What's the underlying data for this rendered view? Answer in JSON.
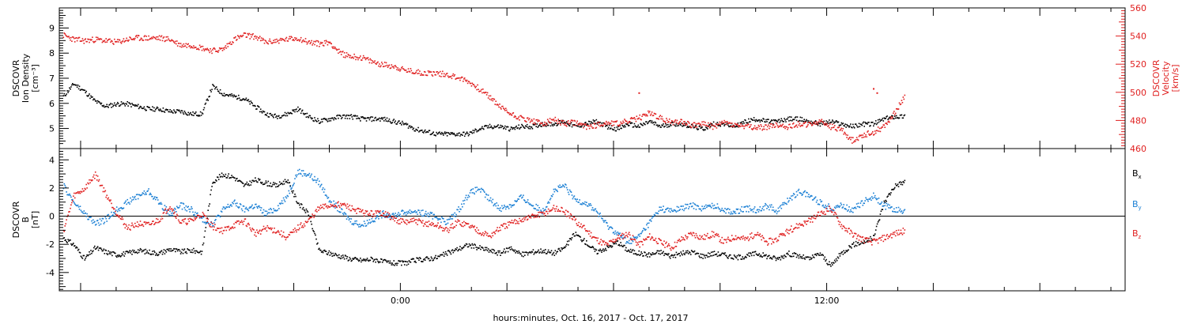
{
  "colors": {
    "density": "#000000",
    "velocity": "#e02020",
    "bx": "#000000",
    "by": "#1a7fd4",
    "bz": "#e02020",
    "axis_right": "#e02020"
  },
  "xaxis": {
    "title": "hours:minutes, Oct. 16, 2017 - Oct. 17, 2017",
    "range_hours": [
      -9.6,
      20.4
    ],
    "major_ticks_hours": [
      0,
      12
    ],
    "major_tick_labels": [
      "0:00",
      "12:00"
    ]
  },
  "chart_data": [
    {
      "type": "scatter",
      "ylabel_left": [
        "DSCOVR",
        "Ion Density",
        "[cm⁻³]"
      ],
      "ylabel_right": [
        "DSCOVR",
        "Velocity",
        "[km/s]"
      ],
      "ylim_left": [
        4.2,
        9.8
      ],
      "ylim_right": [
        460,
        560
      ],
      "yticks_left": [
        5,
        6,
        7,
        8,
        9
      ],
      "yticks_right": [
        460,
        480,
        500,
        520,
        540,
        560
      ],
      "series": [
        {
          "name": "density",
          "axis": "left",
          "x": [
            -9.5,
            -9.2,
            -8.9,
            -8.6,
            -8.3,
            -8.0,
            -7.7,
            -7.4,
            -7.1,
            -6.8,
            -6.5,
            -6.2,
            -5.9,
            -5.6,
            -5.3,
            -5.0,
            -4.7,
            -4.4,
            -4.1,
            -3.8,
            -3.5,
            -3.2,
            -2.9,
            -2.6,
            -2.3,
            -2.0,
            -1.7,
            -1.4,
            -1.1,
            -0.8,
            -0.5,
            -0.2,
            0.1,
            0.4,
            0.7,
            1.0,
            1.3,
            1.6,
            1.9,
            2.2,
            2.5,
            2.8,
            3.1,
            3.4,
            3.7,
            4.0,
            4.3,
            4.6,
            4.9,
            5.2,
            5.5,
            5.8,
            6.1,
            6.4,
            6.7,
            7.0,
            7.3,
            7.6,
            7.9,
            8.2,
            8.5,
            8.8,
            9.1,
            9.4,
            9.7,
            10.0,
            10.3,
            10.6,
            10.9,
            11.2,
            11.5,
            11.8,
            12.1,
            12.4,
            12.7,
            13.0,
            13.3,
            13.6,
            13.9,
            14.2
          ],
          "y": [
            6.3,
            6.8,
            6.5,
            6.1,
            5.9,
            6.0,
            6.0,
            5.9,
            5.8,
            5.8,
            5.7,
            5.7,
            5.6,
            5.6,
            6.7,
            6.4,
            6.3,
            6.2,
            5.9,
            5.6,
            5.5,
            5.6,
            5.8,
            5.5,
            5.3,
            5.4,
            5.5,
            5.5,
            5.4,
            5.4,
            5.4,
            5.3,
            5.2,
            5.0,
            4.9,
            4.8,
            4.8,
            4.8,
            4.8,
            5.0,
            5.1,
            5.1,
            5.0,
            5.1,
            5.1,
            5.2,
            5.2,
            5.3,
            5.1,
            5.2,
            5.3,
            5.1,
            5.0,
            5.2,
            5.1,
            5.3,
            5.1,
            5.2,
            5.2,
            5.1,
            5.0,
            5.2,
            5.2,
            5.1,
            5.3,
            5.4,
            5.3,
            5.3,
            5.4,
            5.4,
            5.3,
            5.2,
            5.3,
            5.2,
            5.1,
            5.2,
            5.2,
            5.4,
            5.5,
            5.5
          ]
        },
        {
          "name": "velocity",
          "axis": "right",
          "x": [
            -9.5,
            -9.2,
            -8.9,
            -8.6,
            -8.3,
            -8.0,
            -7.7,
            -7.4,
            -7.1,
            -6.8,
            -6.5,
            -6.2,
            -5.9,
            -5.6,
            -5.3,
            -5.0,
            -4.7,
            -4.4,
            -4.1,
            -3.8,
            -3.5,
            -3.2,
            -2.9,
            -2.6,
            -2.3,
            -2.0,
            -1.7,
            -1.4,
            -1.1,
            -0.8,
            -0.5,
            -0.2,
            0.1,
            0.4,
            0.7,
            1.0,
            1.3,
            1.6,
            1.9,
            2.2,
            2.5,
            2.8,
            3.1,
            3.4,
            3.7,
            4.0,
            4.3,
            4.6,
            4.9,
            5.2,
            5.5,
            5.8,
            6.1,
            6.4,
            6.7,
            7.0,
            7.3,
            7.6,
            7.9,
            8.2,
            8.5,
            8.8,
            9.1,
            9.4,
            9.7,
            10.0,
            10.3,
            10.6,
            10.9,
            11.2,
            11.5,
            11.8,
            12.1,
            12.4,
            12.7,
            13.0,
            13.3,
            13.6,
            13.9,
            14.2
          ],
          "y": [
            541,
            538,
            537,
            538,
            537,
            536,
            538,
            539,
            539,
            539,
            538,
            534,
            534,
            532,
            530,
            531,
            538,
            541,
            540,
            536,
            537,
            538,
            539,
            536,
            535,
            536,
            528,
            526,
            525,
            522,
            520,
            519,
            516,
            515,
            514,
            514,
            513,
            511,
            508,
            503,
            497,
            490,
            485,
            482,
            480,
            478,
            481,
            478,
            479,
            476,
            477,
            479,
            478,
            480,
            482,
            486,
            482,
            479,
            480,
            477,
            478,
            476,
            479,
            477,
            476,
            475,
            476,
            477,
            476,
            478,
            477,
            480,
            476,
            474,
            466,
            470,
            472,
            476,
            486,
            498
          ]
        },
        {
          "name": "velocity-spike",
          "axis": "right",
          "x": [
            6.7,
            13.3,
            13.4
          ],
          "y": [
            500,
            503,
            500
          ]
        }
      ]
    },
    {
      "type": "scatter",
      "ylabel_left": [
        "DSCOVR",
        "B",
        "[nT]"
      ],
      "ylim": [
        -5.3,
        4.8
      ],
      "yticks": [
        -4,
        -2,
        0,
        2,
        4
      ],
      "zero_line": 0,
      "legend": [
        "Bx",
        "By",
        "Bz"
      ],
      "series": [
        {
          "name": "Bx",
          "x": [
            -9.5,
            -9.2,
            -8.9,
            -8.6,
            -8.3,
            -8.0,
            -7.7,
            -7.4,
            -7.1,
            -6.8,
            -6.5,
            -6.2,
            -5.9,
            -5.6,
            -5.3,
            -5.0,
            -4.7,
            -4.4,
            -4.1,
            -3.8,
            -3.5,
            -3.2,
            -2.9,
            -2.6,
            -2.3,
            -2.0,
            -1.7,
            -1.4,
            -1.1,
            -0.8,
            -0.5,
            -0.2,
            0.1,
            0.4,
            0.7,
            1.0,
            1.3,
            1.6,
            1.9,
            2.2,
            2.5,
            2.8,
            3.1,
            3.4,
            3.7,
            4.0,
            4.3,
            4.6,
            4.9,
            5.2,
            5.5,
            5.8,
            6.1,
            6.4,
            6.7,
            7.0,
            7.3,
            7.6,
            7.9,
            8.2,
            8.5,
            8.8,
            9.1,
            9.4,
            9.7,
            10.0,
            10.3,
            10.6,
            10.9,
            11.2,
            11.5,
            11.8,
            12.1,
            12.4,
            12.7,
            13.0,
            13.3,
            13.6,
            13.9,
            14.2
          ],
          "y": [
            -1.5,
            -2.0,
            -3.0,
            -2.2,
            -2.5,
            -2.7,
            -2.6,
            -2.4,
            -2.5,
            -2.6,
            -2.3,
            -2.5,
            -2.4,
            -2.5,
            2.5,
            3.0,
            2.8,
            2.2,
            2.6,
            2.4,
            2.2,
            2.6,
            1.0,
            0.2,
            -2.4,
            -2.6,
            -2.8,
            -3.0,
            -3.1,
            -3.0,
            -3.2,
            -3.3,
            -3.3,
            -3.1,
            -3.0,
            -2.9,
            -2.6,
            -2.3,
            -2.0,
            -2.2,
            -2.4,
            -2.6,
            -2.2,
            -2.7,
            -2.5,
            -2.4,
            -2.6,
            -2.2,
            -1.2,
            -1.8,
            -2.5,
            -2.2,
            -1.8,
            -2.4,
            -2.6,
            -2.7,
            -2.5,
            -2.8,
            -2.6,
            -2.5,
            -2.8,
            -2.6,
            -2.7,
            -2.9,
            -2.8,
            -2.6,
            -2.8,
            -3.0,
            -2.6,
            -2.8,
            -3.0,
            -2.6,
            -3.5,
            -2.6,
            -2.0,
            -1.8,
            -1.5,
            1.0,
            2.2,
            2.5
          ]
        },
        {
          "name": "By",
          "x": [
            -9.5,
            -9.2,
            -8.9,
            -8.6,
            -8.3,
            -8.0,
            -7.7,
            -7.4,
            -7.1,
            -6.8,
            -6.5,
            -6.2,
            -5.9,
            -5.6,
            -5.3,
            -5.0,
            -4.7,
            -4.4,
            -4.1,
            -3.8,
            -3.5,
            -3.2,
            -2.9,
            -2.6,
            -2.3,
            -2.0,
            -1.7,
            -1.4,
            -1.1,
            -0.8,
            -0.5,
            -0.2,
            0.1,
            0.4,
            0.7,
            1.0,
            1.3,
            1.6,
            1.9,
            2.2,
            2.5,
            2.8,
            3.1,
            3.4,
            3.7,
            4.0,
            4.3,
            4.6,
            4.9,
            5.2,
            5.5,
            5.8,
            6.1,
            6.4,
            6.7,
            7.0,
            7.3,
            7.6,
            7.9,
            8.2,
            8.5,
            8.8,
            9.1,
            9.4,
            9.7,
            10.0,
            10.3,
            10.6,
            10.9,
            11.2,
            11.5,
            11.8,
            12.1,
            12.4,
            12.7,
            13.0,
            13.3,
            13.6,
            13.9,
            14.2
          ],
          "y": [
            2.2,
            1.0,
            0.2,
            -0.5,
            -0.2,
            0.5,
            1.0,
            1.5,
            1.8,
            1.0,
            0.2,
            0.8,
            0.5,
            -0.2,
            -0.5,
            0.5,
            1.0,
            0.5,
            0.8,
            0.2,
            0.6,
            1.5,
            3.2,
            3.0,
            2.4,
            1.2,
            0.4,
            -0.3,
            -0.6,
            -0.2,
            0.2,
            0.1,
            0.3,
            0.4,
            0.2,
            0.0,
            -0.4,
            0.4,
            1.6,
            2.0,
            1.2,
            0.6,
            0.8,
            1.4,
            0.8,
            0.4,
            1.8,
            2.2,
            1.2,
            1.0,
            0.4,
            -0.6,
            -1.2,
            -1.8,
            -1.4,
            -0.4,
            0.6,
            0.4,
            0.6,
            0.8,
            0.6,
            0.8,
            0.5,
            0.3,
            0.6,
            0.5,
            0.8,
            0.4,
            1.2,
            1.8,
            1.5,
            1.0,
            0.6,
            0.8,
            0.5,
            1.0,
            1.5,
            0.8,
            0.5,
            0.4
          ]
        },
        {
          "name": "Bz",
          "x": [
            -9.5,
            -9.2,
            -8.9,
            -8.6,
            -8.3,
            -8.0,
            -7.7,
            -7.4,
            -7.1,
            -6.8,
            -6.5,
            -6.2,
            -5.9,
            -5.6,
            -5.3,
            -5.0,
            -4.7,
            -4.4,
            -4.1,
            -3.8,
            -3.5,
            -3.2,
            -2.9,
            -2.6,
            -2.3,
            -2.0,
            -1.7,
            -1.4,
            -1.1,
            -0.8,
            -0.5,
            -0.2,
            0.1,
            0.4,
            0.7,
            1.0,
            1.3,
            1.6,
            1.9,
            2.2,
            2.5,
            2.8,
            3.1,
            3.4,
            3.7,
            4.0,
            4.3,
            4.6,
            4.9,
            5.2,
            5.5,
            5.8,
            6.1,
            6.4,
            6.7,
            7.0,
            7.3,
            7.6,
            7.9,
            8.2,
            8.5,
            8.8,
            9.1,
            9.4,
            9.7,
            10.0,
            10.3,
            10.6,
            10.9,
            11.2,
            11.5,
            11.8,
            12.1,
            12.4,
            12.7,
            13.0,
            13.3,
            13.6,
            13.9,
            14.2
          ],
          "y": [
            -1.0,
            1.5,
            2.0,
            3.0,
            1.6,
            0.3,
            -0.8,
            -0.5,
            -0.6,
            -0.2,
            0.8,
            -0.4,
            -0.3,
            0.2,
            -0.7,
            -1.0,
            -0.6,
            -0.3,
            -1.2,
            -0.8,
            -1.0,
            -1.5,
            -0.8,
            -0.3,
            0.6,
            0.8,
            0.9,
            0.6,
            0.3,
            0.2,
            0.3,
            -0.2,
            -0.4,
            -0.3,
            -0.5,
            -0.6,
            -1.0,
            -0.4,
            -0.6,
            -1.0,
            -1.4,
            -0.8,
            -0.5,
            -0.2,
            0.0,
            0.2,
            0.6,
            0.4,
            -0.3,
            -0.9,
            -1.6,
            -2.0,
            -1.5,
            -1.2,
            -2.0,
            -1.4,
            -1.8,
            -2.2,
            -1.6,
            -1.2,
            -1.5,
            -1.2,
            -1.8,
            -1.4,
            -1.6,
            -1.2,
            -1.8,
            -1.6,
            -1.0,
            -0.6,
            -0.3,
            0.2,
            0.6,
            -0.6,
            -1.2,
            -1.6,
            -1.8,
            -1.5,
            -1.2,
            -1.0
          ]
        }
      ]
    }
  ]
}
